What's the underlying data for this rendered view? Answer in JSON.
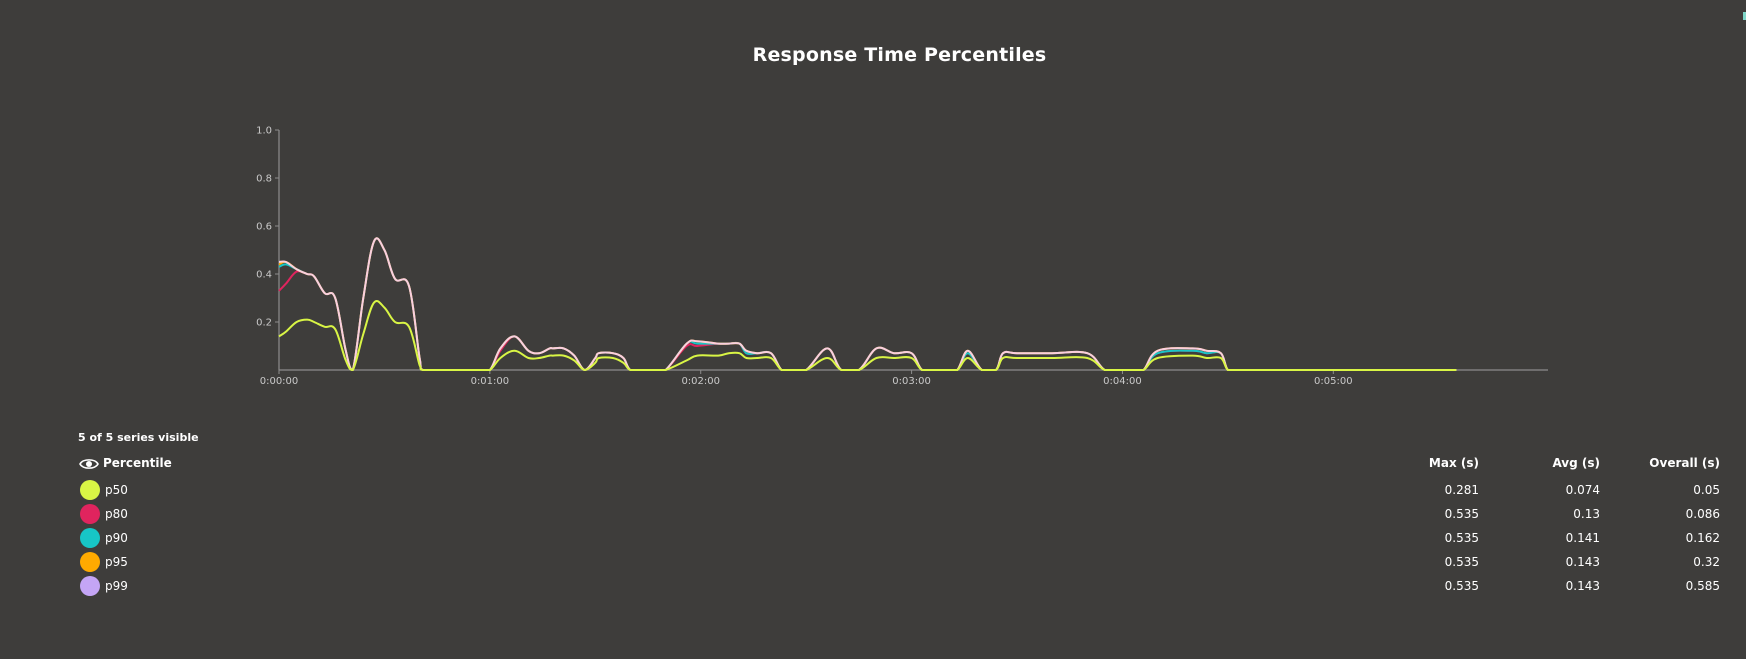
{
  "chart_data": {
    "type": "line",
    "title": "Response Time Percentiles",
    "xlabel": "",
    "ylabel": "",
    "x_unit": "seconds",
    "xlim": [
      0,
      348
    ],
    "ylim": [
      0,
      1.0
    ],
    "y_ticks": [
      1.0,
      0.8,
      0.6,
      0.4,
      0.2
    ],
    "y_tick_labels": [
      "1.0",
      "0.8",
      "0.6",
      "0.4",
      "0.2"
    ],
    "x_ticks": [
      0,
      60,
      120,
      180,
      240,
      300
    ],
    "x_tick_labels": [
      "0:00:00",
      "0:01:00",
      "0:02:00",
      "0:03:00",
      "0:04:00",
      "0:05:00"
    ],
    "grid": false,
    "x": [
      0,
      2,
      5,
      8,
      10,
      13,
      16,
      19,
      21,
      24,
      27,
      30,
      33,
      37,
      40,
      41,
      47,
      50,
      52,
      54,
      57,
      60,
      63,
      67,
      71,
      74,
      77,
      78,
      81,
      84,
      87,
      90,
      91,
      95,
      98,
      100,
      104,
      107,
      110,
      116,
      119,
      125,
      128,
      131,
      133,
      136,
      140,
      143,
      146,
      150,
      156,
      160,
      165,
      170,
      175,
      180,
      183,
      187,
      190,
      193,
      196,
      200,
      204,
      206,
      210,
      220,
      230,
      235,
      240,
      243,
      246,
      250,
      260,
      264,
      268,
      270,
      273,
      276,
      278,
      282,
      300,
      320,
      335
    ],
    "series": [
      {
        "name": "p50",
        "color": "#d9f545",
        "values": [
          0.14,
          0.16,
          0.2,
          0.21,
          0.2,
          0.18,
          0.17,
          0.04,
          0,
          0.15,
          0.28,
          0.26,
          0.2,
          0.18,
          0.02,
          0,
          0,
          0,
          0,
          0,
          0,
          0,
          0.05,
          0.08,
          0.05,
          0.05,
          0.06,
          0.06,
          0.06,
          0.04,
          0,
          0.03,
          0.05,
          0.05,
          0.03,
          0,
          0,
          0,
          0,
          0.04,
          0.06,
          0.06,
          0.07,
          0.07,
          0.05,
          0.05,
          0.05,
          0,
          0,
          0,
          0.05,
          0,
          0,
          0.05,
          0.05,
          0.05,
          0,
          0,
          0,
          0,
          0.05,
          0,
          0,
          0.05,
          0.05,
          0.05,
          0.05,
          0,
          0,
          0,
          0,
          0.05,
          0.06,
          0.05,
          0.05,
          0,
          0,
          0,
          0,
          0,
          0,
          0,
          0
        ]
      },
      {
        "name": "p80",
        "color": "#e0245e",
        "values": [
          0.33,
          0.36,
          0.41,
          0.4,
          0.39,
          0.32,
          0.3,
          0.08,
          0,
          0.3,
          0.535,
          0.5,
          0.38,
          0.35,
          0.05,
          0,
          0,
          0,
          0,
          0,
          0,
          0,
          0.08,
          0.14,
          0.08,
          0.07,
          0.09,
          0.09,
          0.09,
          0.06,
          0,
          0.05,
          0.07,
          0.07,
          0.05,
          0,
          0,
          0,
          0,
          0.1,
          0.1,
          0.11,
          0.11,
          0.11,
          0.07,
          0.07,
          0.07,
          0,
          0,
          0,
          0.09,
          0,
          0,
          0.09,
          0.07,
          0.07,
          0,
          0,
          0,
          0,
          0.07,
          0,
          0,
          0.07,
          0.07,
          0.07,
          0.07,
          0,
          0,
          0,
          0,
          0.07,
          0.08,
          0.07,
          0.07,
          0,
          0,
          0,
          0,
          0,
          0,
          0,
          0
        ]
      },
      {
        "name": "p90",
        "color": "#17c6c6",
        "values": [
          0.43,
          0.44,
          0.42,
          0.4,
          0.39,
          0.32,
          0.3,
          0.08,
          0,
          0.3,
          0.535,
          0.5,
          0.38,
          0.35,
          0.05,
          0,
          0,
          0,
          0,
          0,
          0,
          0,
          0.09,
          0.14,
          0.08,
          0.07,
          0.09,
          0.09,
          0.09,
          0.06,
          0,
          0.05,
          0.07,
          0.07,
          0.05,
          0,
          0,
          0,
          0,
          0.11,
          0.11,
          0.11,
          0.11,
          0.11,
          0.07,
          0.07,
          0.07,
          0,
          0,
          0,
          0.09,
          0,
          0,
          0.09,
          0.07,
          0.07,
          0,
          0,
          0,
          0,
          0.07,
          0,
          0,
          0.07,
          0.07,
          0.07,
          0.07,
          0,
          0,
          0,
          0,
          0.07,
          0.08,
          0.07,
          0.07,
          0,
          0,
          0,
          0,
          0,
          0,
          0,
          0
        ]
      },
      {
        "name": "p95",
        "color": "#ffaa00",
        "values": [
          0.44,
          0.45,
          0.42,
          0.4,
          0.39,
          0.32,
          0.3,
          0.08,
          0,
          0.3,
          0.535,
          0.5,
          0.38,
          0.35,
          0.05,
          0,
          0,
          0,
          0,
          0,
          0,
          0,
          0.09,
          0.14,
          0.08,
          0.07,
          0.09,
          0.09,
          0.09,
          0.06,
          0,
          0.05,
          0.07,
          0.07,
          0.05,
          0,
          0,
          0,
          0,
          0.11,
          0.12,
          0.11,
          0.11,
          0.11,
          0.08,
          0.07,
          0.07,
          0,
          0,
          0,
          0.09,
          0,
          0,
          0.09,
          0.07,
          0.07,
          0,
          0,
          0,
          0,
          0.08,
          0,
          0,
          0.07,
          0.07,
          0.07,
          0.07,
          0,
          0,
          0,
          0,
          0.08,
          0.09,
          0.08,
          0.07,
          0,
          0,
          0,
          0,
          0,
          0,
          0,
          0
        ]
      },
      {
        "name": "p99",
        "color": "#c4a5f5",
        "values": [
          0.45,
          0.45,
          0.42,
          0.4,
          0.39,
          0.32,
          0.3,
          0.08,
          0,
          0.3,
          0.535,
          0.5,
          0.38,
          0.35,
          0.05,
          0,
          0,
          0,
          0,
          0,
          0,
          0,
          0.09,
          0.14,
          0.08,
          0.07,
          0.09,
          0.09,
          0.09,
          0.06,
          0,
          0.05,
          0.07,
          0.07,
          0.05,
          0,
          0,
          0,
          0,
          0.11,
          0.12,
          0.11,
          0.11,
          0.11,
          0.08,
          0.07,
          0.07,
          0,
          0,
          0,
          0.09,
          0,
          0,
          0.09,
          0.07,
          0.07,
          0,
          0,
          0,
          0,
          0.08,
          0,
          0,
          0.07,
          0.07,
          0.07,
          0.07,
          0,
          0,
          0,
          0,
          0.08,
          0.09,
          0.08,
          0.07,
          0,
          0,
          0,
          0,
          0,
          0,
          0,
          0
        ]
      }
    ],
    "overlay_line_color": "#f8cfe0"
  },
  "legend": {
    "caption": "5 of 5 series visible",
    "header_label": "Percentile",
    "header_icon": "eye-icon",
    "col_max": "Max (s)",
    "col_avg": "Avg (s)",
    "col_overall": "Overall (s)",
    "rows": [
      {
        "label": "p50",
        "color": "#d9f545",
        "max": "0.281",
        "avg": "0.074",
        "overall": "0.05"
      },
      {
        "label": "p80",
        "color": "#e0245e",
        "max": "0.535",
        "avg": "0.13",
        "overall": "0.086"
      },
      {
        "label": "p90",
        "color": "#17c6c6",
        "max": "0.535",
        "avg": "0.141",
        "overall": "0.162"
      },
      {
        "label": "p95",
        "color": "#ffaa00",
        "max": "0.535",
        "avg": "0.143",
        "overall": "0.32"
      },
      {
        "label": "p99",
        "color": "#c4a5f5",
        "max": "0.535",
        "avg": "0.143",
        "overall": "0.585"
      }
    ]
  }
}
